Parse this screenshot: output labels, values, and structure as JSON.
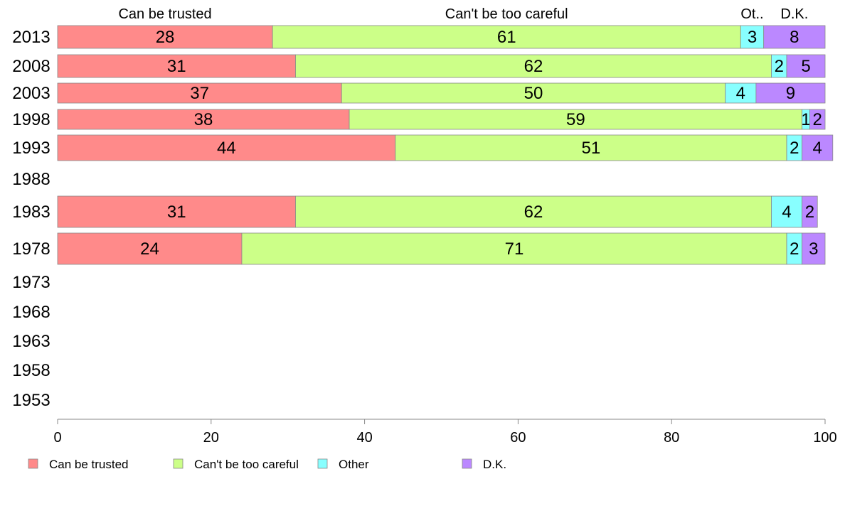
{
  "chart_data": {
    "type": "bar",
    "orientation": "horizontal",
    "stacked": true,
    "categories": [
      "2013",
      "2008",
      "2003",
      "1998",
      "1993",
      "1988",
      "1983",
      "1978",
      "1973",
      "1968",
      "1963",
      "1958",
      "1953"
    ],
    "series": [
      {
        "name": "Can be trusted",
        "header": "Can be trusted",
        "color": "#ff8a8a",
        "values": [
          28,
          31,
          37,
          38,
          44,
          null,
          31,
          24,
          null,
          null,
          null,
          null,
          null
        ]
      },
      {
        "name": "Can't be too careful",
        "header": "Can't be too careful",
        "color": "#ccff88",
        "values": [
          61,
          62,
          50,
          59,
          51,
          null,
          62,
          71,
          null,
          null,
          null,
          null,
          null
        ]
      },
      {
        "name": "Other",
        "header": "Ot..",
        "color": "#88ffff",
        "values": [
          3,
          2,
          4,
          1,
          2,
          null,
          4,
          2,
          null,
          null,
          null,
          null,
          null
        ]
      },
      {
        "name": "D.K.",
        "header": "D.K.",
        "color": "#bb88ff",
        "values": [
          8,
          5,
          9,
          2,
          4,
          null,
          2,
          3,
          null,
          null,
          null,
          null,
          null
        ]
      }
    ],
    "xlim": [
      0,
      100
    ],
    "xticks": [
      0,
      20,
      40,
      60,
      80,
      100
    ],
    "grid": false,
    "legend_position": "bottom"
  }
}
